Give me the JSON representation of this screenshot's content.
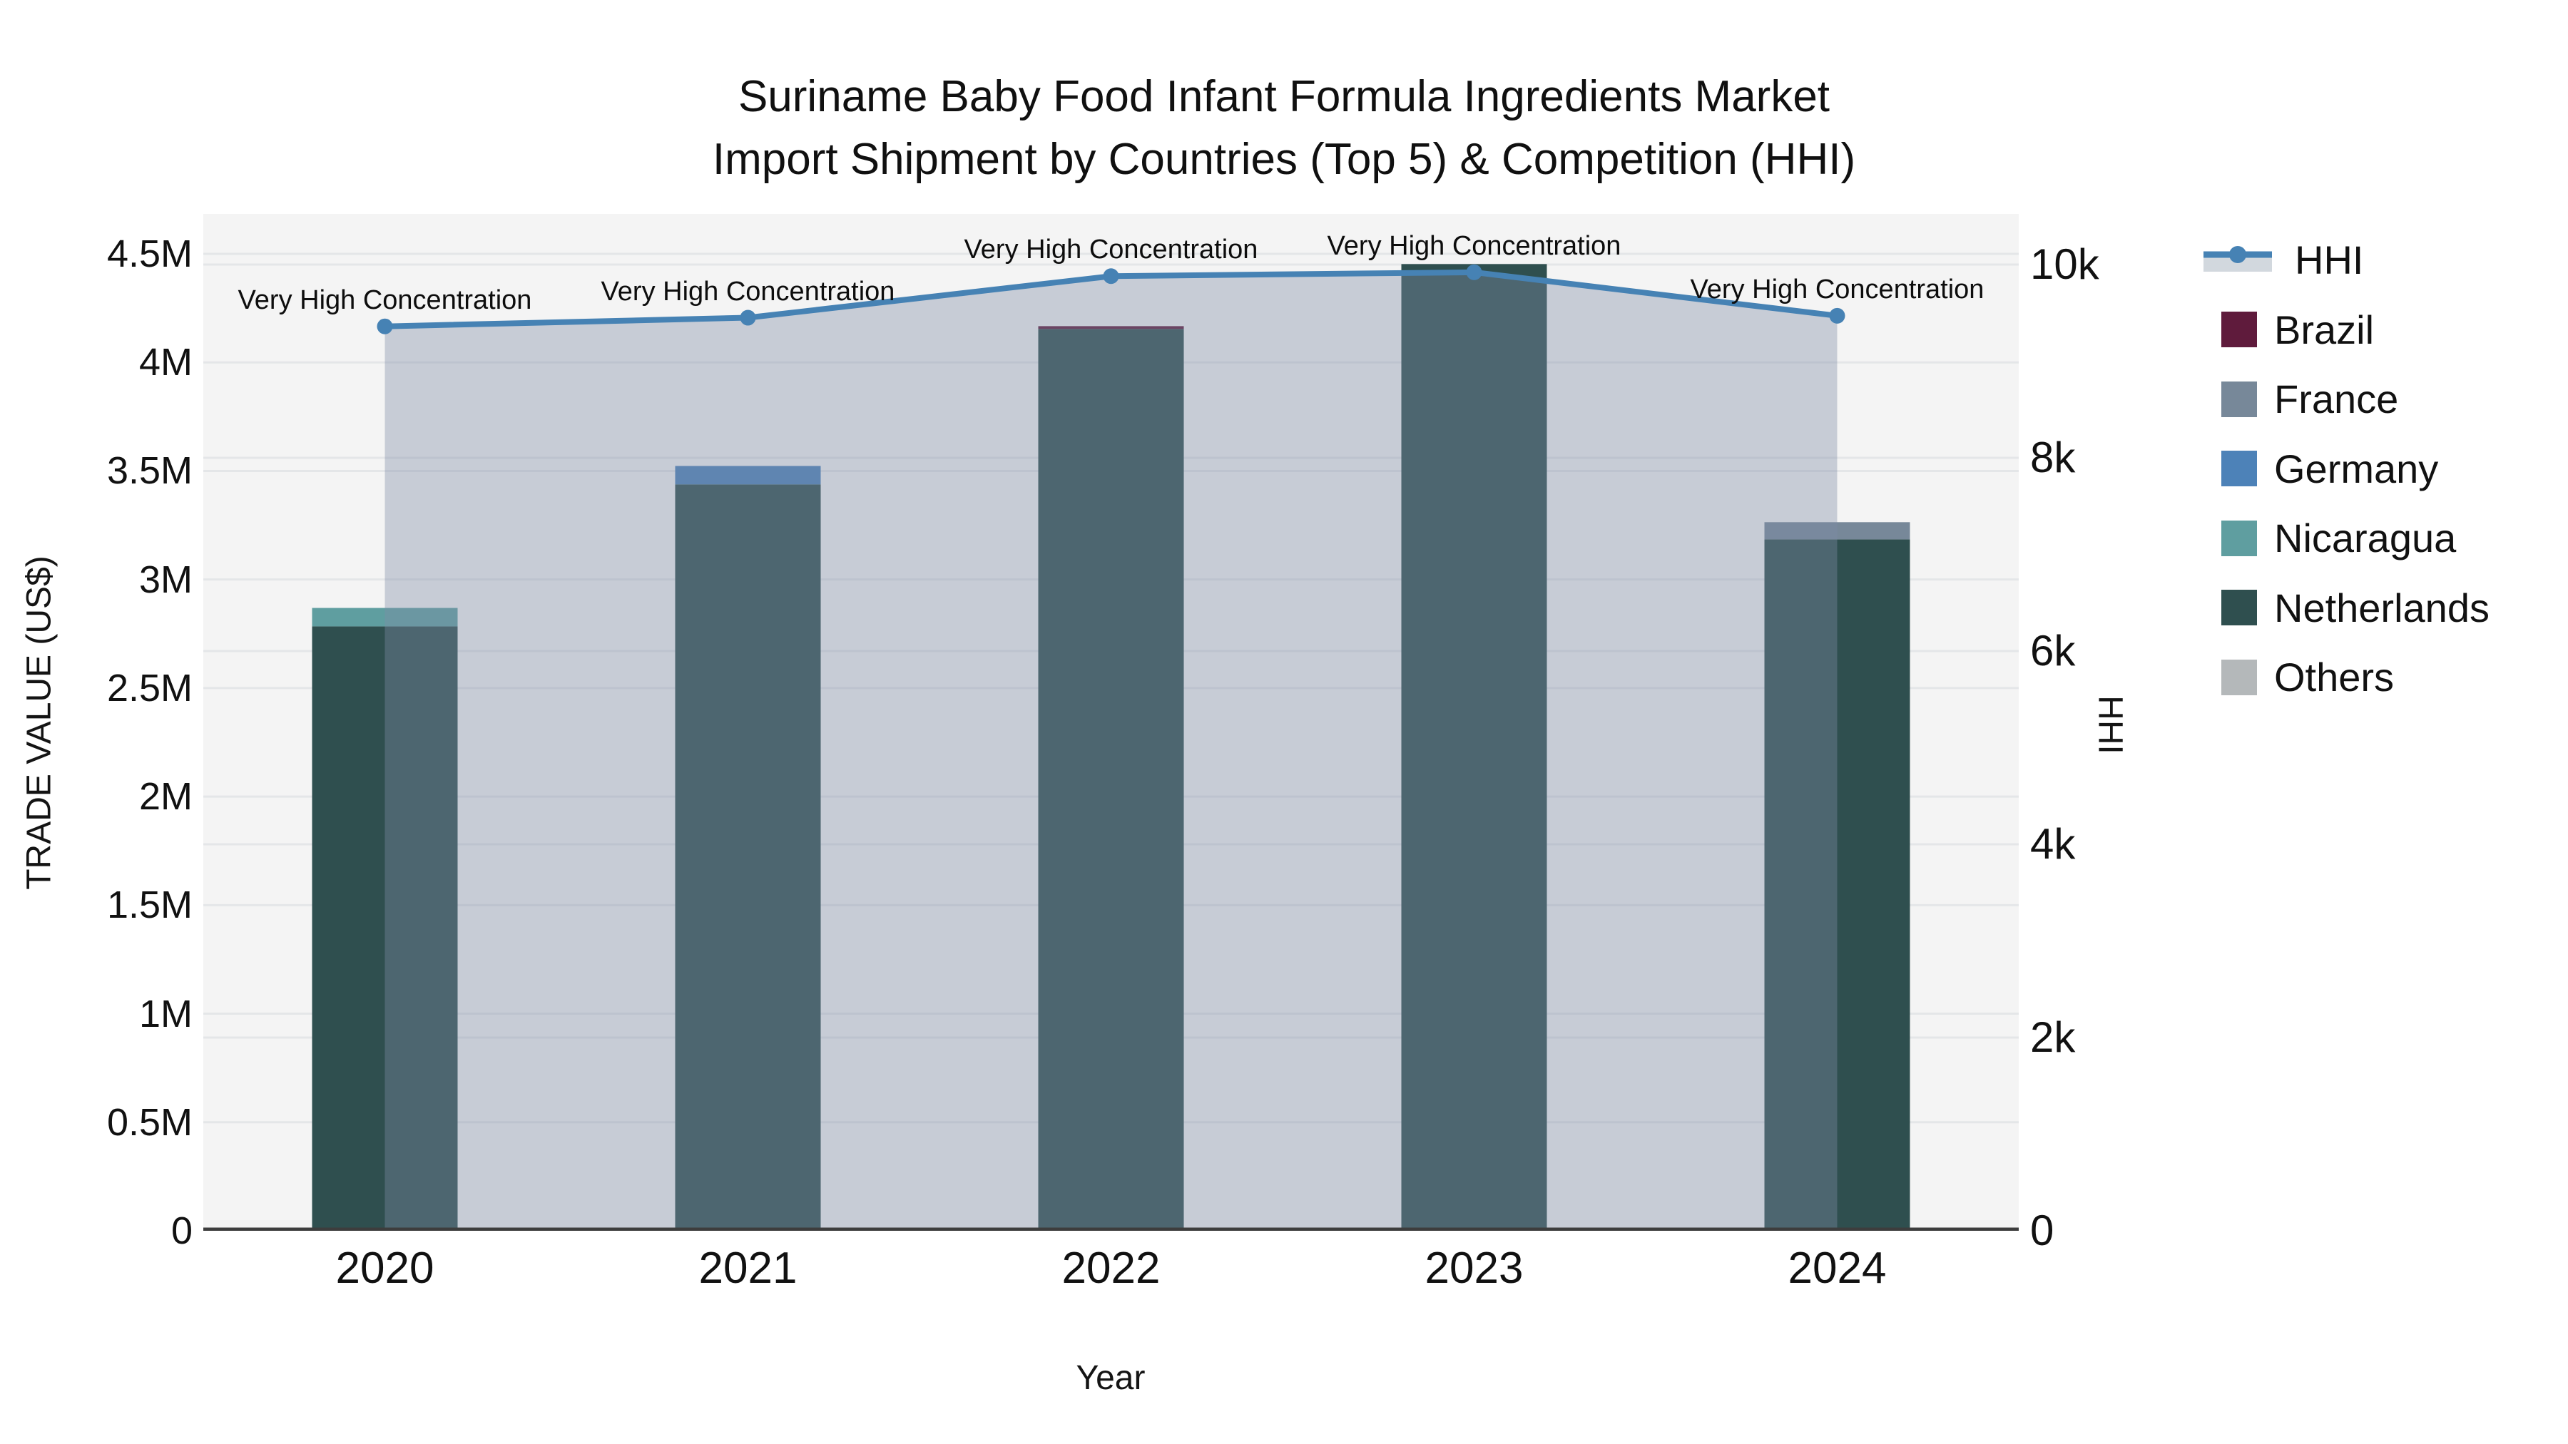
{
  "title": {
    "line1": "Suriname Baby Food Infant Formula Ingredients Market",
    "line2": "Import Shipment by Countries (Top 5) & Competition (HHI)"
  },
  "axes": {
    "left_title": "TRADE VALUE (US$)",
    "right_title": "HHI",
    "x_title": "Year",
    "left_tick_labels": [
      "0",
      "0.5M",
      "1M",
      "1.5M",
      "2M",
      "2.5M",
      "3M",
      "3.5M",
      "4M",
      "4.5M"
    ],
    "left_tick_values": [
      0,
      500000,
      1000000,
      1500000,
      2000000,
      2500000,
      3000000,
      3500000,
      4000000,
      4500000
    ],
    "right_tick_labels": [
      "0",
      "2k",
      "4k",
      "6k",
      "8k",
      "10k"
    ],
    "right_tick_values": [
      0,
      2000,
      4000,
      6000,
      8000,
      10000
    ]
  },
  "chart_data": {
    "type": "combo-stacked-bar-line",
    "categories": [
      "2020",
      "2021",
      "2022",
      "2023",
      "2024"
    ],
    "series": [
      {
        "name": "Brazil",
        "color": "#5f1b3c",
        "values": [
          0,
          0,
          13000,
          0,
          0
        ]
      },
      {
        "name": "France",
        "color": "#778899",
        "values": [
          0,
          0,
          0,
          0,
          79000
        ]
      },
      {
        "name": "Germany",
        "color": "#4d82b8",
        "values": [
          0,
          85000,
          0,
          0,
          0
        ]
      },
      {
        "name": "Nicaragua",
        "color": "#5F9EA0",
        "values": [
          85000,
          0,
          0,
          0,
          0
        ]
      },
      {
        "name": "Netherlands",
        "color": "#2F4F4F",
        "values": [
          2784000,
          3438000,
          4154000,
          4453000,
          3185000
        ]
      },
      {
        "name": "Others",
        "color": "#b4b8ba",
        "values": [
          0,
          0,
          0,
          0,
          0
        ]
      }
    ],
    "stack_order_bottom_to_top": [
      "Others",
      "Netherlands",
      "Nicaragua",
      "Germany",
      "France",
      "Brazil"
    ],
    "bar_totals": [
      2869000,
      3523000,
      4167000,
      4453000,
      3264000
    ],
    "line_series": {
      "name": "HHI",
      "color": "#4682B4",
      "values": [
        9360,
        9450,
        9880,
        9920,
        9470
      ]
    },
    "annotations": [
      "Very High Concentration",
      "Very High Concentration",
      "Very High Concentration",
      "Very High Concentration",
      "Very High Concentration"
    ],
    "title": "Suriname Baby Food Infant Formula Ingredients Market Import Shipment by Countries (Top 5) & Competition (HHI)",
    "xlabel": "Year",
    "ylabel_left": "TRADE VALUE (US$)",
    "ylabel_right": "HHI",
    "ylim_left": [
      0,
      4500000
    ],
    "ylim_right": [
      0,
      10000
    ],
    "grid": true,
    "legend_position": "right",
    "legend_entries": [
      "HHI",
      "Brazil",
      "France",
      "Germany",
      "Nicaragua",
      "Netherlands",
      "Others"
    ]
  },
  "colors": {
    "plot_background": "#f4f4f4",
    "gridline": "#e4e6e8",
    "axis_line": "#3d3d3d",
    "hhi_line": "#4682B4",
    "hhi_area_fill": "rgba(125,140,165,0.38)",
    "legend_area_swatch": "#d2d8de",
    "text": "#111111"
  }
}
